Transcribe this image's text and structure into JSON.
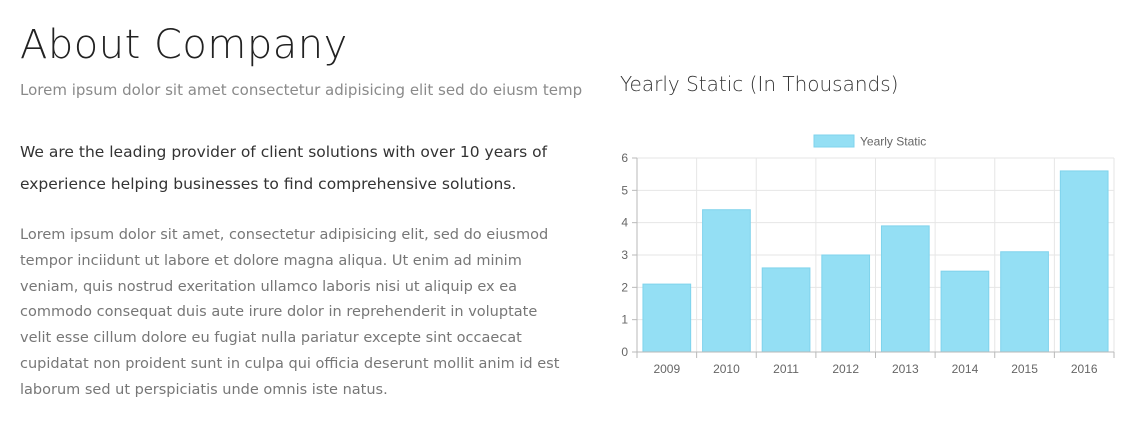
{
  "about": {
    "heading": "About Company",
    "subtitle": "Lorem ipsum dolor sit amet consectetur adipisicing elit sed do eiusm temp",
    "lead": "We are the leading provider of client solutions with over 10 years of experience helping businesses to find comprehensive solutions.",
    "body": "Lorem ipsum dolor sit amet, consectetur adipisicing elit, sed do eiusmod tempor inciidunt ut labore et dolore magna aliqua. Ut enim ad minim veniam, quis nostrud exeritation ullamco laboris nisi ut aliquip ex ea commodo consequat duis aute irure dolor in reprehenderit in voluptate velit esse cillum dolore eu fugiat nulla pariatur excepte sint occaecat cupidatat non proident sunt in culpa qui officia deserunt mollit anim id est laborum sed ut perspiciatis unde omnis iste natus."
  },
  "chart_title": "Yearly Static (In Thousands)",
  "chart_data": {
    "type": "bar",
    "categories": [
      "2009",
      "2010",
      "2011",
      "2012",
      "2013",
      "2014",
      "2015",
      "2016"
    ],
    "series": [
      {
        "name": "Yearly Static",
        "values": [
          2.1,
          4.4,
          2.6,
          3.0,
          3.9,
          2.5,
          3.1,
          5.6
        ]
      }
    ],
    "ylim": [
      0,
      6
    ],
    "yticks": [
      0,
      1,
      2,
      3,
      4,
      5,
      6
    ],
    "grid": true,
    "legend": "top",
    "colors": {
      "bar_fill": "#94dff4",
      "bar_stroke": "#7fd3ec",
      "grid": "#e6e6e6",
      "axis": "#b9b9b9",
      "tick_text": "#666666"
    }
  }
}
